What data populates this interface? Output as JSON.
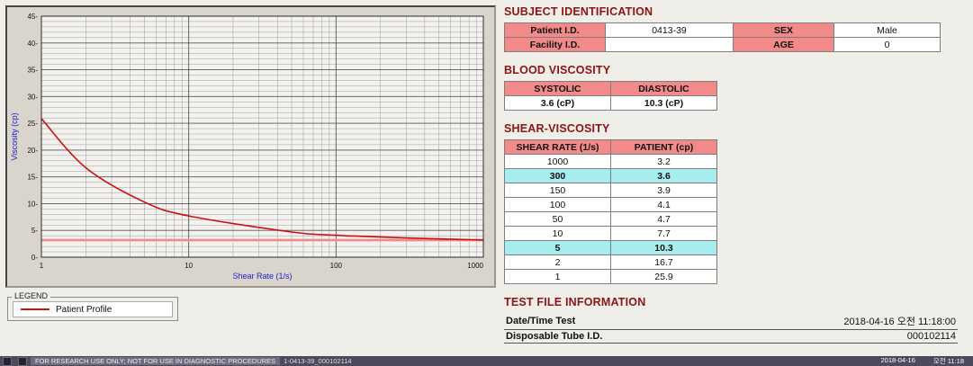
{
  "chart_data": {
    "type": "line",
    "title": "",
    "xlabel": "Shear Rate (1/s)",
    "ylabel": "Viscosity (cp)",
    "x_scale": "log",
    "xlim": [
      1,
      1000
    ],
    "ylim": [
      0,
      45
    ],
    "y_major_step": 5,
    "y_minor_step": 1,
    "x_ticks": [
      1,
      10,
      100,
      1000
    ],
    "grid": "on",
    "series": [
      {
        "name": "Patient Profile",
        "color": "#cc1111",
        "x": [
          1,
          2,
          5,
          10,
          50,
          100,
          150,
          300,
          1000
        ],
        "y": [
          25.9,
          16.7,
          10.3,
          7.7,
          4.7,
          4.1,
          3.9,
          3.6,
          3.2
        ]
      }
    ],
    "reference_line": {
      "y": 3.2,
      "color": "#e07070"
    }
  },
  "legend": {
    "title": "LEGEND",
    "items": [
      {
        "label": "Patient Profile",
        "color": "#cc1111"
      }
    ]
  },
  "sections": {
    "subject": {
      "title": "SUBJECT IDENTIFICATION",
      "rows": [
        [
          "Patient I.D.",
          "0413-39",
          "SEX",
          "Male"
        ],
        [
          "Facility I.D.",
          "",
          "AGE",
          "0"
        ]
      ]
    },
    "blood": {
      "title": "BLOOD VISCOSITY",
      "headers": [
        "SYSTOLIC",
        "DIASTOLIC"
      ],
      "values": [
        "3.6 (cP)",
        "10.3 (cP)"
      ]
    },
    "shear": {
      "title": "SHEAR-VISCOSITY",
      "headers": [
        "SHEAR RATE (1/s)",
        "PATIENT (cp)"
      ],
      "rows": [
        [
          "1000",
          "3.2"
        ],
        [
          "300",
          "3.6"
        ],
        [
          "150",
          "3.9"
        ],
        [
          "100",
          "4.1"
        ],
        [
          "50",
          "4.7"
        ],
        [
          "10",
          "7.7"
        ],
        [
          "5",
          "10.3"
        ],
        [
          "2",
          "16.7"
        ],
        [
          "1",
          "25.9"
        ]
      ],
      "highlighted": [
        1,
        6
      ]
    },
    "testfile": {
      "title": "TEST FILE INFORMATION",
      "rows": [
        [
          "Date/Time Test",
          "2018-04-16  오전 11:18:00"
        ],
        [
          "Disposable Tube I.D.",
          "000102114"
        ]
      ]
    }
  },
  "colors": {
    "heading": "#8b1414",
    "table_header_bg": "#f28a8a",
    "highlight_bg": "#a8eded",
    "axis_label": "#2020cc",
    "curve": "#cc1111"
  },
  "statusbar": {
    "left_text": "FOR RESEARCH USE ONLY; NOT FOR USE IN DIAGNOSTIC PROCEDURES",
    "file_text": "1-0413-39_000102114",
    "date": "2018-04-16",
    "time": "오전 11:18"
  }
}
